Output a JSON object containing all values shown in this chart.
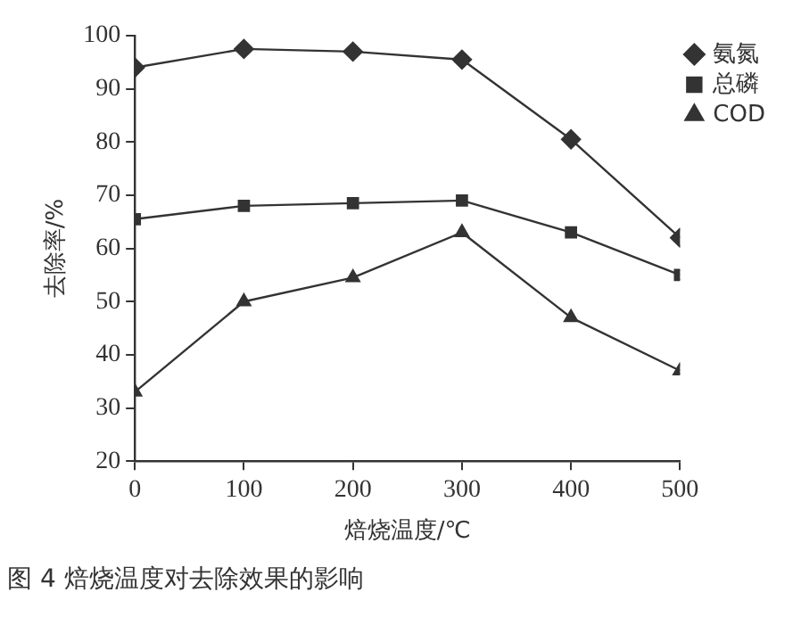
{
  "chart_data": {
    "type": "line",
    "xlabel": "焙烧温度/℃",
    "ylabel": "去除率/%",
    "x": [
      0,
      100,
      200,
      300,
      400,
      500
    ],
    "xlim": [
      0,
      500
    ],
    "xticks": [
      0,
      100,
      200,
      300,
      400,
      500
    ],
    "ylim": [
      20,
      100
    ],
    "yticks": [
      20,
      30,
      40,
      50,
      60,
      70,
      80,
      90,
      100
    ],
    "grid": false,
    "legend": "top right",
    "line_style": "solid",
    "annotations": [
      "图 4 焙烧温度对去除效果的影响"
    ],
    "series": [
      {
        "name": "氨氮",
        "color": "#333333",
        "marker": "diamond",
        "values": [
          94,
          97.5,
          97,
          95.5,
          80.5,
          62
        ]
      },
      {
        "name": "总磷",
        "color": "#333333",
        "marker": "square",
        "values": [
          65.5,
          68,
          68.5,
          69,
          63,
          55
        ]
      },
      {
        "name": "COD",
        "color": "#333333",
        "marker": "triangle",
        "values": [
          33,
          50,
          54.5,
          63,
          47,
          37
        ]
      }
    ]
  }
}
